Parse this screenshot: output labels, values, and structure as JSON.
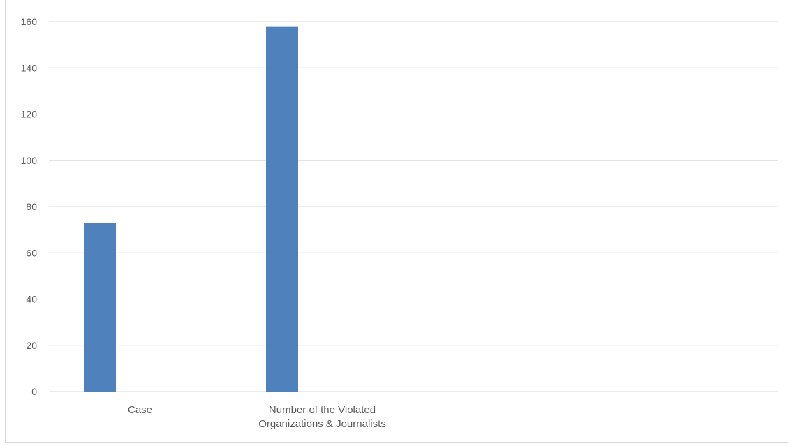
{
  "chart_data": {
    "type": "bar",
    "categories": [
      "Case",
      "Number of the Violated Organizations & Journalists",
      "",
      ""
    ],
    "category_lines": [
      [
        "Case"
      ],
      [
        "Number of the Violated",
        "Organizations & Journalists"
      ],
      [],
      []
    ],
    "values": [
      73,
      158,
      null,
      null
    ],
    "ylim": [
      0,
      160
    ],
    "yticks": [
      0,
      20,
      40,
      60,
      80,
      100,
      120,
      140,
      160
    ],
    "grid": true,
    "legend": "none",
    "colors": {
      "bar": "#4f81bd",
      "grid": "#d9d9d9",
      "text": "#595959"
    }
  }
}
